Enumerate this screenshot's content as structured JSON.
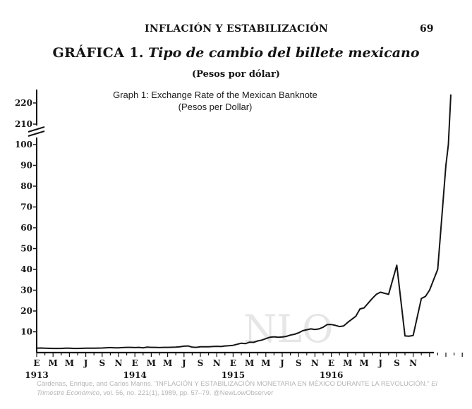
{
  "page": {
    "running_header": "INFLACIÓN Y ESTABILIZACIÓN",
    "page_number": "69",
    "title_label": "GRÁFICA 1.",
    "title_text": "Tipo de cambio del billete mexicano",
    "subtitle": "(Pesos por dólar)",
    "translation_line1": "Graph 1: Exchange Rate of the Mexican Banknote",
    "translation_line2": "(Pesos per Dollar)",
    "watermark": "NLO",
    "citation_main": "Cárdenas, Enrique, and Carlos Manns. \"INFLACIÓN Y ESTABILIZACIÓN MONETARIA EN MÉXICO DURANTE LA REVOLUCIÓN.\"",
    "citation_journal": "El Trimestre Económico",
    "citation_tail": ", vol. 56, no. 221(1), 1989, pp. 57–79. @NewLowObserver"
  },
  "chart_data": {
    "type": "line",
    "title": "Tipo de cambio del billete mexicano",
    "subtitle": "(Pesos por dólar)",
    "y_ticks": [
      10,
      20,
      30,
      40,
      50,
      60,
      70,
      80,
      90,
      100,
      210,
      220
    ],
    "y_axis_break": "between 100 and 210",
    "x_tick_labels": [
      "E",
      "M",
      "M",
      "J",
      "S",
      "N",
      "E",
      "M",
      "M",
      "J",
      "S",
      "N",
      "E",
      "M",
      "M",
      "J",
      "S",
      "N",
      "E",
      "M",
      "M",
      "J",
      "S",
      "N"
    ],
    "year_labels": [
      {
        "label": "1913",
        "month_index": 0
      },
      {
        "label": "1914",
        "month_index": 12
      },
      {
        "label": "1915",
        "month_index": 24
      },
      {
        "label": "1916",
        "month_index": 36
      }
    ],
    "x_unit": "months since January 1913",
    "series": [
      {
        "values": [
          [
            0,
            2.1
          ],
          [
            0.5,
            2.2
          ],
          [
            1,
            2.1
          ],
          [
            2,
            2.0
          ],
          [
            2.5,
            2.0
          ],
          [
            3,
            2.0
          ],
          [
            3.5,
            2.1
          ],
          [
            4,
            2.1
          ],
          [
            4.5,
            2.0
          ],
          [
            5,
            2.0
          ],
          [
            6,
            2.1
          ],
          [
            6.5,
            2.1
          ],
          [
            7,
            2.1
          ],
          [
            8,
            2.2
          ],
          [
            9,
            2.4
          ],
          [
            9.5,
            2.3
          ],
          [
            10,
            2.3
          ],
          [
            10.5,
            2.4
          ],
          [
            11,
            2.5
          ],
          [
            11.5,
            2.5
          ],
          [
            12,
            2.4
          ],
          [
            12.5,
            2.5
          ],
          [
            13,
            2.3
          ],
          [
            13.5,
            2.6
          ],
          [
            14,
            2.5
          ],
          [
            14.5,
            2.5
          ],
          [
            15,
            2.4
          ],
          [
            15.5,
            2.5
          ],
          [
            16,
            2.5
          ],
          [
            17,
            2.6
          ],
          [
            17.5,
            2.8
          ],
          [
            18,
            3.1
          ],
          [
            18.5,
            3.2
          ],
          [
            19,
            2.6
          ],
          [
            19.5,
            2.5
          ],
          [
            20,
            2.8
          ],
          [
            21,
            2.8
          ],
          [
            21.5,
            2.9
          ],
          [
            22,
            3.0
          ],
          [
            22.5,
            2.9
          ],
          [
            23,
            3.2
          ],
          [
            23.5,
            3.3
          ],
          [
            24,
            3.5
          ],
          [
            24.5,
            4.0
          ],
          [
            25,
            4.5
          ],
          [
            25.5,
            4.3
          ],
          [
            26,
            5.0
          ],
          [
            26.5,
            4.9
          ],
          [
            27,
            5.6
          ],
          [
            27.5,
            6.0
          ],
          [
            28,
            6.7
          ],
          [
            28.5,
            7.4
          ],
          [
            29,
            7.6
          ],
          [
            29.5,
            7.4
          ],
          [
            30,
            7.5
          ],
          [
            30.5,
            7.8
          ],
          [
            31,
            8.4
          ],
          [
            31.5,
            8.8
          ],
          [
            32,
            9.5
          ],
          [
            32.5,
            10.5
          ],
          [
            33,
            11.0
          ],
          [
            33.5,
            11.4
          ],
          [
            34,
            11.1
          ],
          [
            34.5,
            11.4
          ],
          [
            35,
            12.2
          ],
          [
            35.5,
            13.5
          ],
          [
            36,
            13.5
          ],
          [
            36.5,
            13.1
          ],
          [
            37,
            12.5
          ],
          [
            37.5,
            12.8
          ],
          [
            38,
            14.5
          ],
          [
            39,
            17.5
          ],
          [
            39.5,
            21.0
          ],
          [
            40,
            21.5
          ],
          [
            41,
            26.0
          ],
          [
            41.5,
            28.0
          ],
          [
            42,
            29.0
          ],
          [
            43,
            28.0
          ],
          [
            44,
            42.0
          ],
          [
            45,
            8.0
          ],
          [
            45.5,
            7.9
          ],
          [
            46,
            8.2
          ],
          [
            47,
            26.0
          ],
          [
            47.5,
            27.0
          ],
          [
            48,
            30.0
          ],
          [
            48.5,
            35.0
          ],
          [
            49,
            40.0
          ],
          [
            49.5,
            65.0
          ],
          [
            50,
            90.0
          ],
          [
            50.3,
            100.0
          ],
          [
            50.6,
            224.0
          ]
        ]
      }
    ]
  }
}
